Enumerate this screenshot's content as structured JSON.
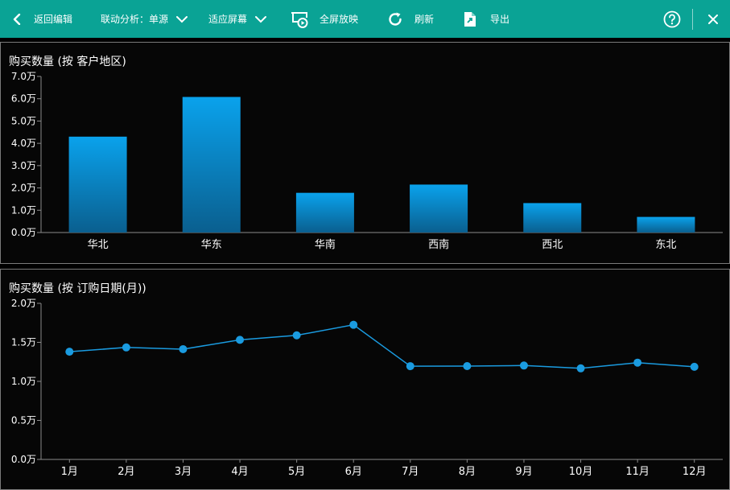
{
  "toolbar": {
    "back_label": "返回编辑",
    "linkage_label": "联动分析：单源",
    "fit_label": "适应屏幕",
    "fullscreen_label": "全屏放映",
    "refresh_label": "刷新",
    "export_label": "导出",
    "help_icon": "help-circle-icon",
    "close_icon": "close-icon"
  },
  "colors": {
    "toolbar_bg": "#0aa395",
    "bar_top": "#0aa2ec",
    "bar_bottom": "#0a5f8f",
    "line": "#1a9be0"
  },
  "charts": [
    {
      "title": "购买数量 (按 客户地区)",
      "chart_data": {
        "type": "bar",
        "categories": [
          "华北",
          "华东",
          "华南",
          "西南",
          "西北",
          "东北"
        ],
        "values": [
          43000,
          60800,
          17800,
          21500,
          13200,
          7000
        ],
        "ylim": [
          0,
          70000
        ],
        "yticks": [
          "0.0万",
          "1.0万",
          "2.0万",
          "3.0万",
          "4.0万",
          "5.0万",
          "6.0万",
          "7.0万"
        ],
        "grid": false
      }
    },
    {
      "title": "购买数量 (按 订购日期(月))",
      "chart_data": {
        "type": "line",
        "categories": [
          "1月",
          "2月",
          "3月",
          "4月",
          "5月",
          "6月",
          "7月",
          "8月",
          "9月",
          "10月",
          "11月",
          "12月"
        ],
        "values": [
          13800,
          14350,
          14130,
          15320,
          15900,
          17250,
          11950,
          11960,
          12030,
          11670,
          12400,
          11870
        ],
        "ylim": [
          0,
          20000
        ],
        "yticks": [
          "0.0万",
          "0.5万",
          "1.0万",
          "1.5万",
          "2.0万"
        ],
        "grid": false
      }
    }
  ]
}
